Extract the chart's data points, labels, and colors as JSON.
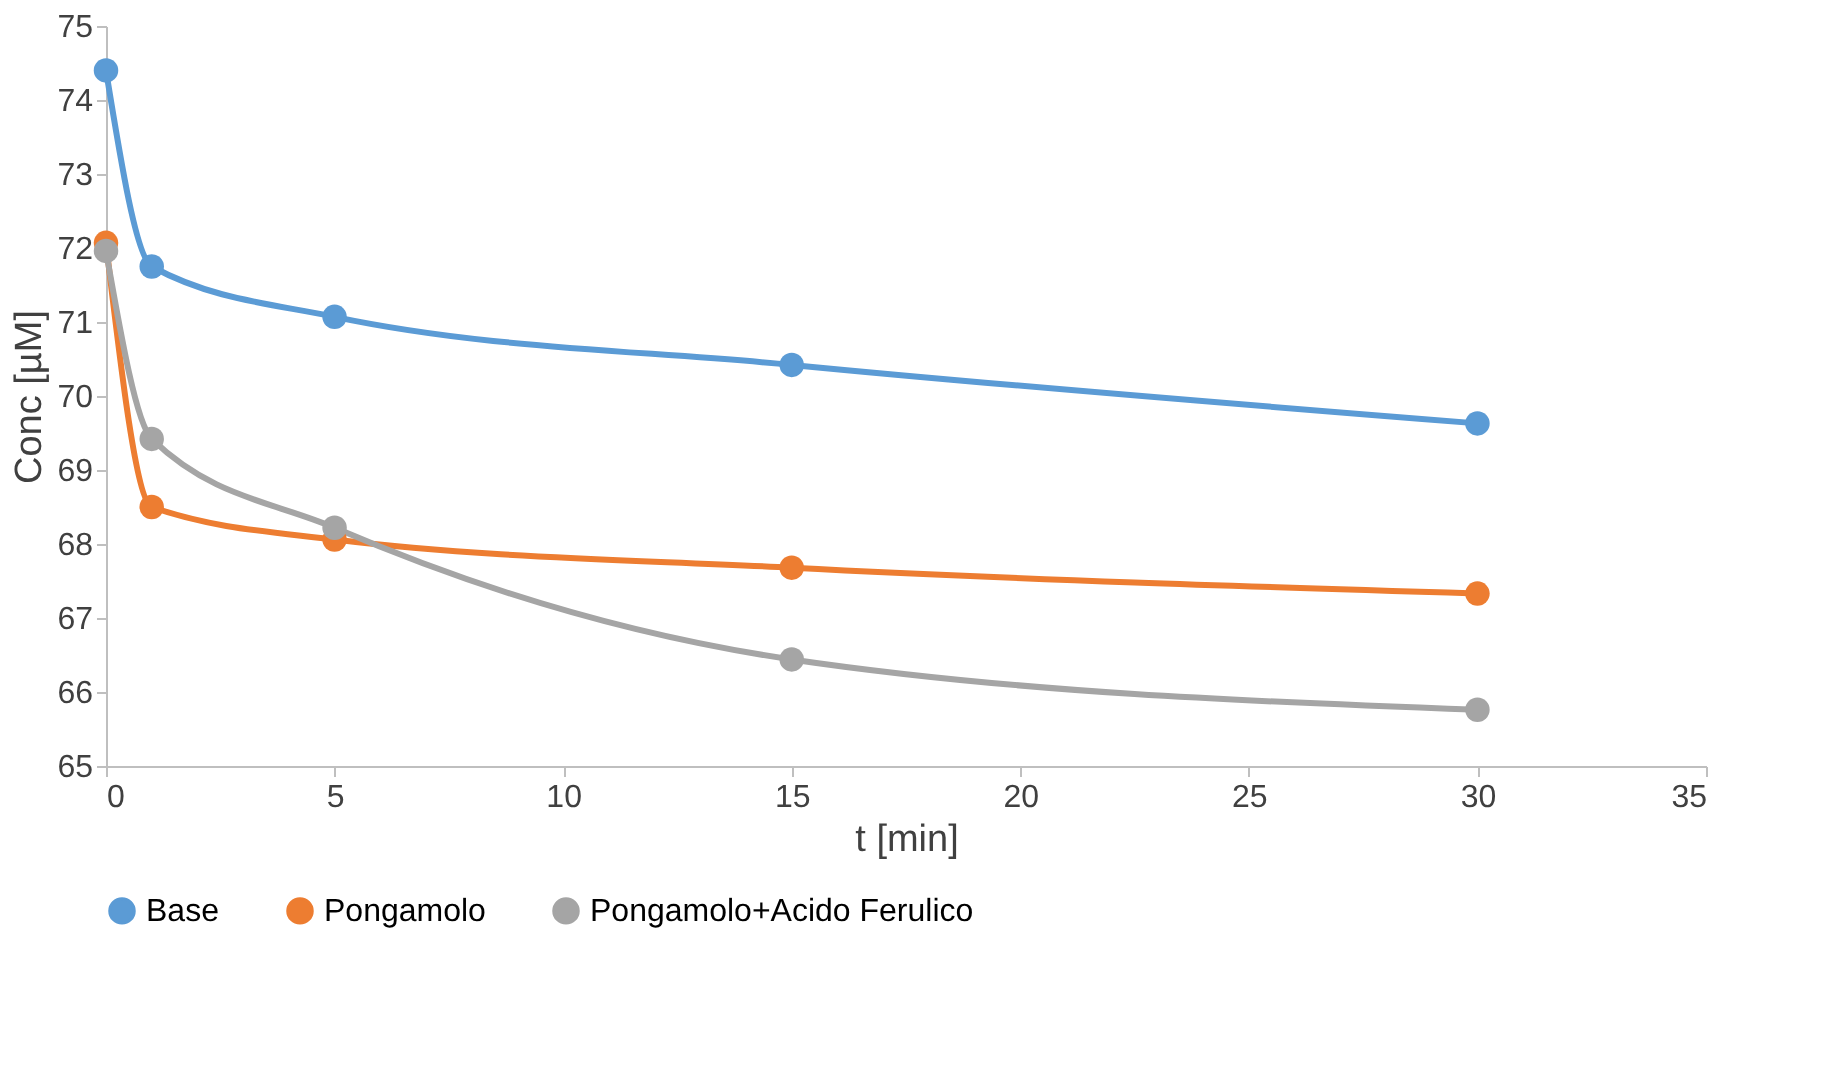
{
  "chart_data": {
    "type": "line",
    "xlabel": "t [min]",
    "ylabel": "Conc [µM]",
    "x": [
      0,
      1,
      5,
      15,
      30
    ],
    "series": [
      {
        "name": "Base",
        "color": "#5b9bd5",
        "values": [
          74.4,
          71.75,
          71.07,
          70.42,
          69.63
        ]
      },
      {
        "name": "Pongamolo",
        "color": "#ed7d31",
        "values": [
          72.07,
          68.5,
          68.06,
          67.68,
          67.33
        ]
      },
      {
        "name": "Pongamolo+Acido Ferulico",
        "color": "#a5a5a5",
        "values": [
          71.96,
          69.42,
          68.22,
          66.44,
          65.76
        ]
      }
    ],
    "xlim": [
      0,
      35
    ],
    "xticks": [
      0,
      5,
      10,
      15,
      20,
      25,
      30,
      35
    ],
    "ylim": [
      65,
      75
    ],
    "yticks": [
      65,
      66,
      67,
      68,
      69,
      70,
      71,
      72,
      73,
      74,
      75
    ],
    "grid": false,
    "legend": "bottom",
    "marker": "circle",
    "line_style": "solid"
  }
}
